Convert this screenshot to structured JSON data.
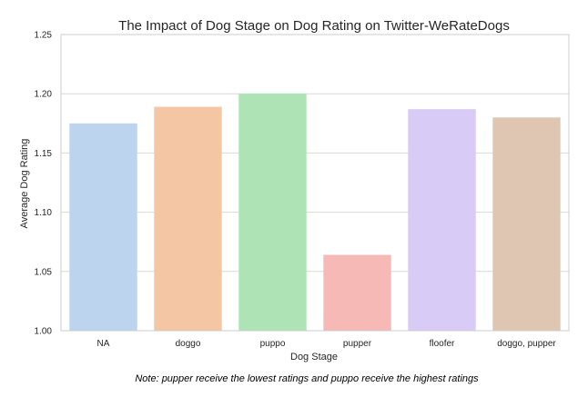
{
  "chart_data": {
    "type": "bar",
    "title": "The Impact of Dog Stage on Dog Rating on Twitter-WeRateDogs",
    "xlabel": "Dog Stage",
    "ylabel": "Average Dog Rating",
    "categories": [
      "NA",
      "doggo",
      "puppo",
      "pupper",
      "floofer",
      "doggo, pupper"
    ],
    "values": [
      1.175,
      1.189,
      1.2,
      1.064,
      1.187,
      1.18
    ],
    "colors": [
      "#bcd4ee",
      "#f4c6a4",
      "#aee3b6",
      "#f6b9b6",
      "#d8cbf6",
      "#dfc6b3"
    ],
    "ylim": [
      1.0,
      1.25
    ],
    "yticks": [
      "1.00",
      "1.05",
      "1.10",
      "1.15",
      "1.20",
      "1.25"
    ],
    "grid": "horizontal",
    "note": "Note: pupper receive the lowest ratings and puppo receive the highest ratings"
  }
}
